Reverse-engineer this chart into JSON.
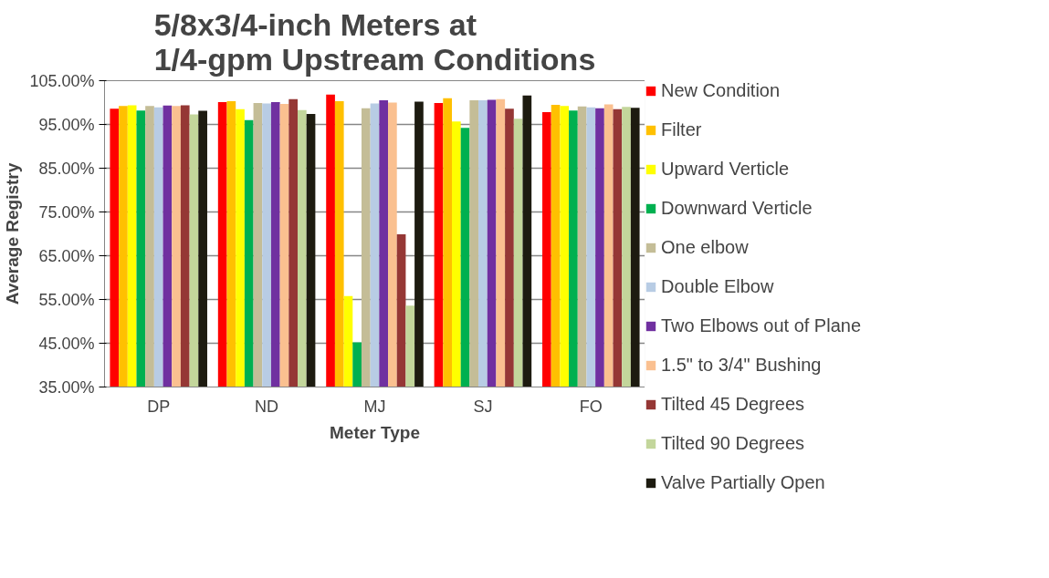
{
  "chart_data": {
    "type": "bar",
    "title": "5/8x3/4-inch Meters at\n1/4-gpm Upstream Conditions",
    "xlabel": "Meter Type",
    "ylabel": "Average Registry",
    "categories": [
      "DP",
      "ND",
      "MJ",
      "SJ",
      "FO"
    ],
    "series": [
      {
        "name": "New Condition",
        "color": "#ff0000",
        "values": [
          98.6,
          100.1,
          101.8,
          99.9,
          97.8
        ]
      },
      {
        "name": "Filter",
        "color": "#ffc000",
        "values": [
          99.2,
          100.3,
          100.3,
          101.0,
          99.5
        ]
      },
      {
        "name": "Upward Verticle",
        "color": "#ffff00",
        "values": [
          99.4,
          98.5,
          55.8,
          95.7,
          99.2
        ]
      },
      {
        "name": "Downward Verticle",
        "color": "#00b050",
        "values": [
          98.2,
          96.0,
          45.2,
          94.2,
          98.2
        ]
      },
      {
        "name": "One elbow",
        "color": "#c4bd97",
        "values": [
          99.2,
          99.9,
          98.7,
          100.5,
          99.1
        ]
      },
      {
        "name": "Double Elbow",
        "color": "#b8cce4",
        "values": [
          98.9,
          99.8,
          99.8,
          100.5,
          98.9
        ]
      },
      {
        "name": "Two Elbows out of Plane",
        "color": "#7030a0",
        "values": [
          99.3,
          100.1,
          100.5,
          100.6,
          98.7
        ]
      },
      {
        "name": "1.5\" to 3/4\" Bushing",
        "color": "#fac090",
        "values": [
          99.2,
          99.7,
          100.0,
          100.8,
          99.6
        ]
      },
      {
        "name": "Tilted 45 Degrees",
        "color": "#953735",
        "values": [
          99.4,
          100.8,
          69.9,
          98.6,
          98.5
        ]
      },
      {
        "name": "Tilted 90 Degrees",
        "color": "#c3d69b",
        "values": [
          97.3,
          98.3,
          53.6,
          96.3,
          99.0
        ]
      },
      {
        "name": "Valve Partially Open",
        "color": "#1d1b10",
        "values": [
          98.1,
          97.4,
          100.2,
          101.6,
          98.8
        ]
      }
    ],
    "ylim": [
      35,
      105
    ],
    "yticks": [
      {
        "value": 35,
        "label": "35.00%"
      },
      {
        "value": 45,
        "label": "45.00%"
      },
      {
        "value": 55,
        "label": "55.00%"
      },
      {
        "value": 65,
        "label": "65.00%"
      },
      {
        "value": 75,
        "label": "75.00%"
      },
      {
        "value": 85,
        "label": "85.00%"
      },
      {
        "value": 95,
        "label": "95.00%"
      },
      {
        "value": 105,
        "label": "105.00%"
      }
    ],
    "grid": "y",
    "legend": "right"
  }
}
